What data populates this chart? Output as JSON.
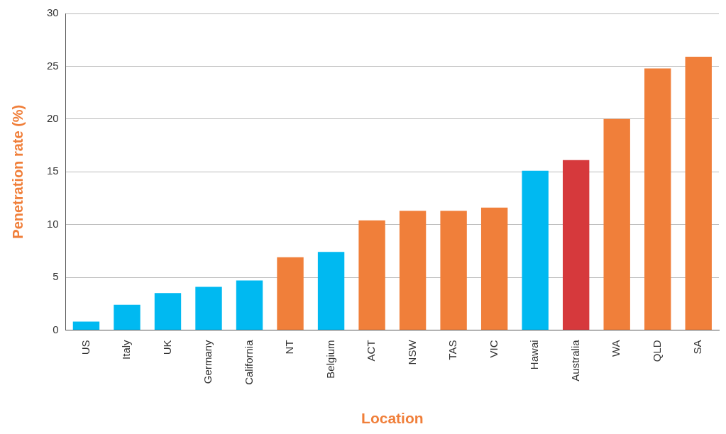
{
  "chart_data": {
    "type": "bar",
    "xlabel": "Location",
    "ylabel": "Penetration rate (%)",
    "categories": [
      "US",
      "Italy",
      "UK",
      "Germany",
      "California",
      "NT",
      "Belgium",
      "ACT",
      "NSW",
      "TAS",
      "VIC",
      "Hawai",
      "Australia",
      "WA",
      "QLD",
      "SA"
    ],
    "values": [
      0.8,
      2.4,
      3.5,
      4.1,
      4.7,
      6.9,
      7.4,
      10.4,
      11.3,
      11.3,
      11.6,
      15.1,
      16.1,
      20.0,
      24.8,
      25.9
    ],
    "colors": [
      "#00b9f1",
      "#00b9f1",
      "#00b9f1",
      "#00b9f1",
      "#00b9f1",
      "#f07f3a",
      "#00b9f1",
      "#f07f3a",
      "#f07f3a",
      "#f07f3a",
      "#f07f3a",
      "#00b9f1",
      "#d6393c",
      "#f07f3a",
      "#f07f3a",
      "#f07f3a"
    ],
    "ylim": [
      0,
      30
    ],
    "yticks": [
      0,
      5,
      10,
      15,
      20,
      25,
      30
    ],
    "grid": "y",
    "legend": false
  }
}
